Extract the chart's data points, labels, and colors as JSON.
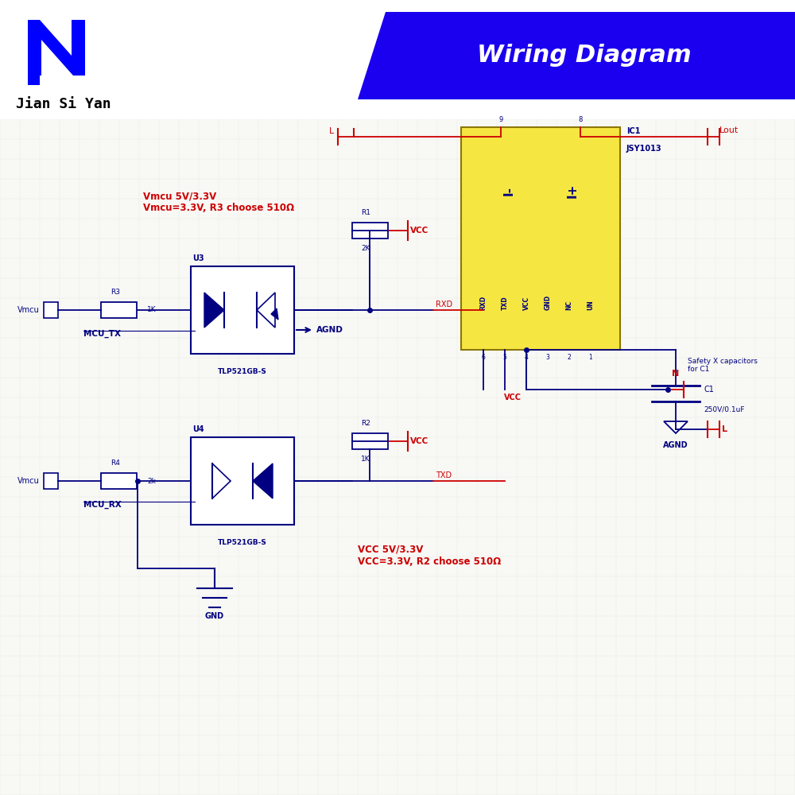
{
  "bg_color": "#f5f5f0",
  "grid_color": "#e0e0e0",
  "blue": "#0000cc",
  "dark_blue": "#000080",
  "red": "#cc0000",
  "dark_red": "#8b0000",
  "yellow_fill": "#f5e642",
  "yellow_border": "#c8b400",
  "title_bg": "#1a00cc",
  "title_text": "Wiring Diagram",
  "brand_text": "Jian Si Yan",
  "ic_label": "IC1\nJSY1013",
  "note1": "Vmcu 5V/3.3V\nVmcu=3.3V, R3 choose 510Ω",
  "note2": "VCC 5V/3.3V\nVCC=3.3V, R2 choose 510Ω",
  "cap_label": "Safety X capacitors\nfor C1",
  "c1_label": "C1\n250V/0.1uF"
}
